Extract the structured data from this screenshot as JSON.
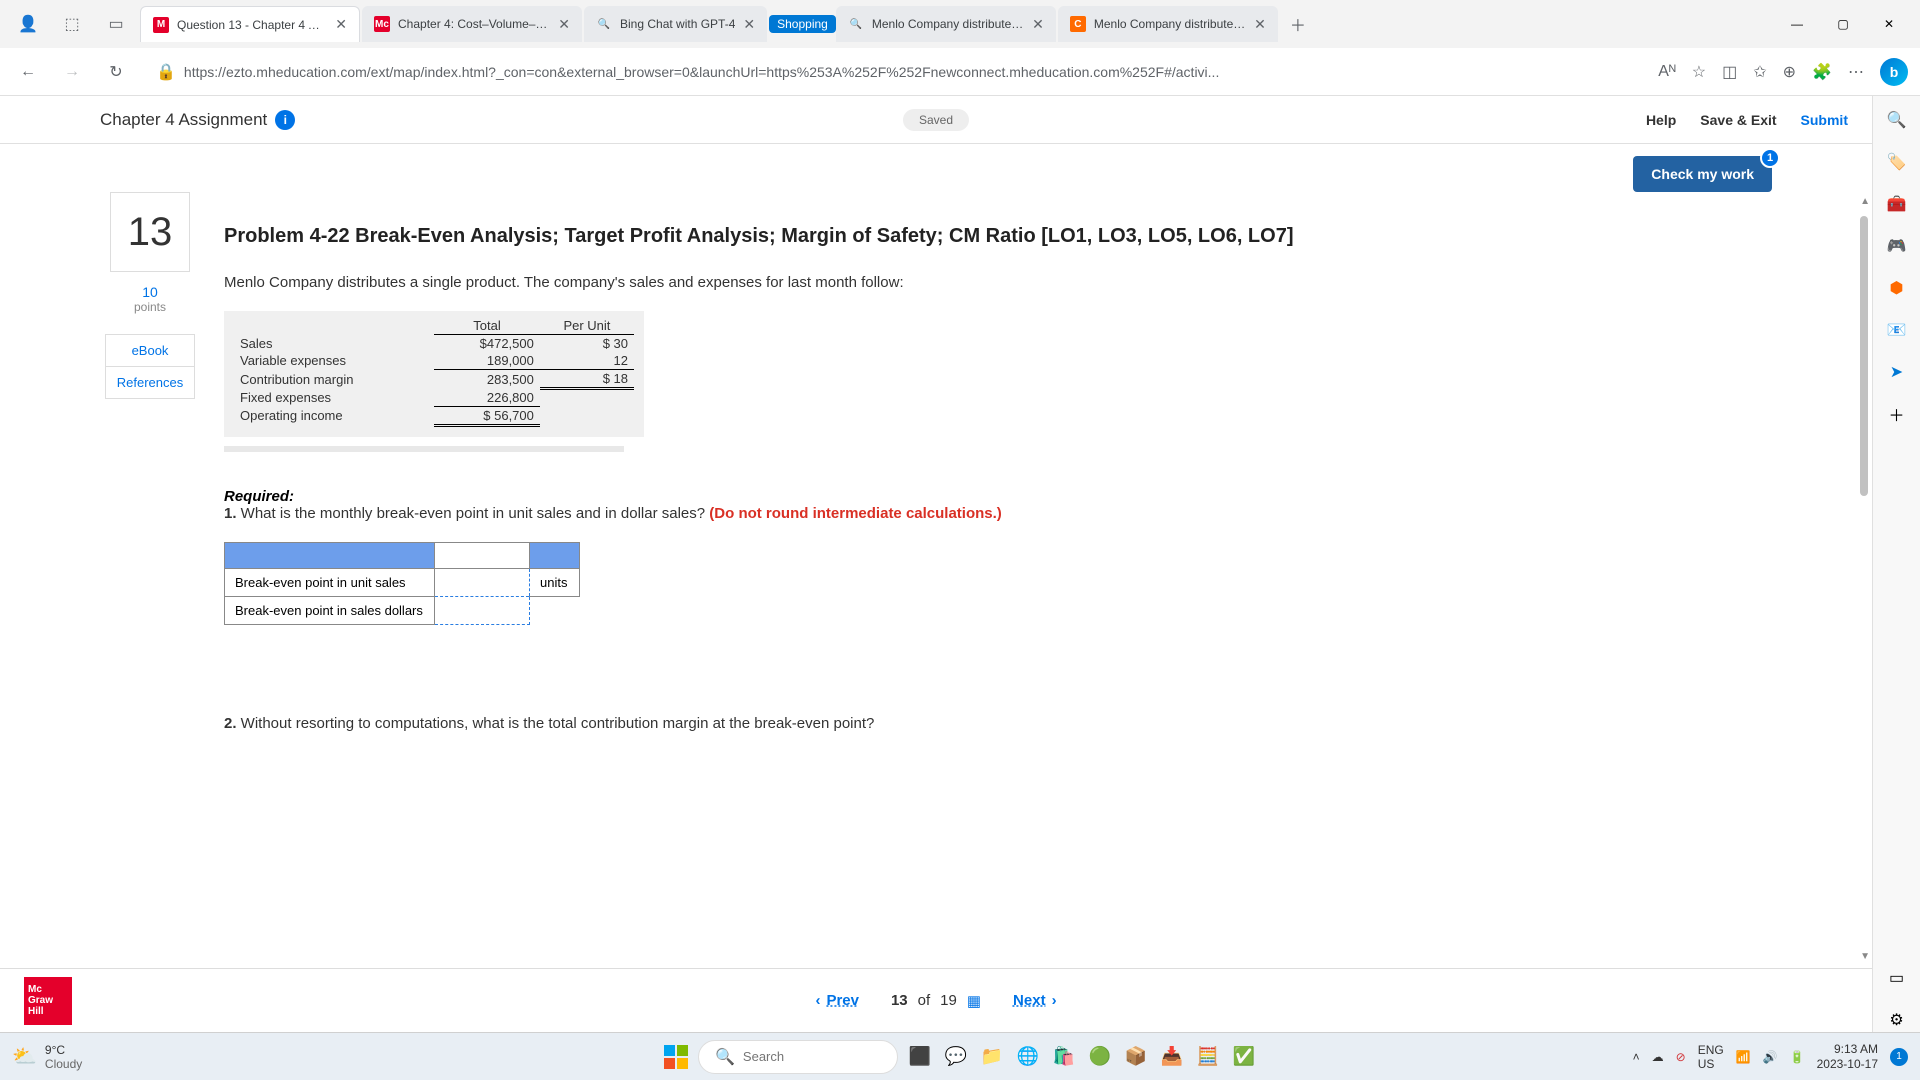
{
  "browser": {
    "tabs": [
      {
        "favicon_bg": "#e4002b",
        "favicon_text": "M",
        "favicon_color": "#fff",
        "title": "Question 13 - Chapter 4 Assig",
        "active": true
      },
      {
        "favicon_bg": "#e4002b",
        "favicon_text": "Mc",
        "favicon_color": "#fff",
        "title": "Chapter 4: Cost–Volume–Profi"
      },
      {
        "favicon_bg": "transparent",
        "favicon_text": "🔍",
        "favicon_color": "#5f6368",
        "title": "Bing Chat with GPT-4"
      },
      {
        "favicon_bg": "transparent",
        "favicon_text": "🔍",
        "favicon_color": "#5f6368",
        "title": "Menlo Company distributes a",
        "shopping": true
      },
      {
        "favicon_bg": "#ff6a00",
        "favicon_text": "C",
        "favicon_color": "#fff",
        "title": "Menlo Company distributes a"
      }
    ],
    "shopping_label": "Shopping",
    "url": "https://ezto.mheducation.com/ext/map/index.html?_con=con&external_browser=0&launchUrl=https%253A%252F%252Fnewconnect.mheducation.com%252F#/activi...",
    "reader_label": "Aᴺ"
  },
  "header": {
    "title": "Chapter 4 Assignment",
    "saved": "Saved",
    "help": "Help",
    "save_exit": "Save & Exit",
    "submit": "Submit"
  },
  "check_work": {
    "label": "Check my work",
    "badge": "1"
  },
  "question": {
    "number": "13",
    "points_value": "10",
    "points_label": "points",
    "ebook": "eBook",
    "references": "References",
    "title": "Problem 4-22 Break-Even Analysis; Target Profit Analysis; Margin of Safety; CM Ratio [LO1, LO3, LO5, LO6, LO7]",
    "intro": "Menlo Company distributes a single product. The company's sales and expenses for last month follow:",
    "table": {
      "col_total": "Total",
      "col_per_unit": "Per Unit",
      "rows": [
        {
          "label": "Sales",
          "total": "$472,500",
          "per_unit": "$ 30"
        },
        {
          "label": "Variable expenses",
          "total": "189,000",
          "per_unit": "12"
        },
        {
          "label": "Contribution margin",
          "total": "283,500",
          "per_unit": "$ 18"
        },
        {
          "label": "Fixed expenses",
          "total": "226,800",
          "per_unit": ""
        },
        {
          "label": "Operating income",
          "total": "$ 56,700",
          "per_unit": ""
        }
      ]
    },
    "required_label": "Required:",
    "req1_num": "1.",
    "req1_text": " What is the monthly break-even point in unit sales and in dollar sales? ",
    "req1_note": "(Do not round intermediate calculations.)",
    "answer_table": {
      "row1_label": "Break-even point in unit sales",
      "row1_unit": "units",
      "row2_label": "Break-even point in sales dollars"
    },
    "req2_num": "2.",
    "req2_text": " Without resorting to computations, what is the total contribution margin at the break-even point?"
  },
  "nav": {
    "prev": "Prev",
    "position_current": "13",
    "position_of": "of",
    "position_total": "19",
    "next": "Next",
    "logo_l1": "Mc",
    "logo_l2": "Graw",
    "logo_l3": "Hill"
  },
  "taskbar": {
    "temp": "9°C",
    "weather": "Cloudy",
    "search_placeholder": "Search",
    "lang1": "ENG",
    "lang2": "US",
    "time": "9:13 AM",
    "date": "2023-10-17",
    "notif": "1"
  }
}
